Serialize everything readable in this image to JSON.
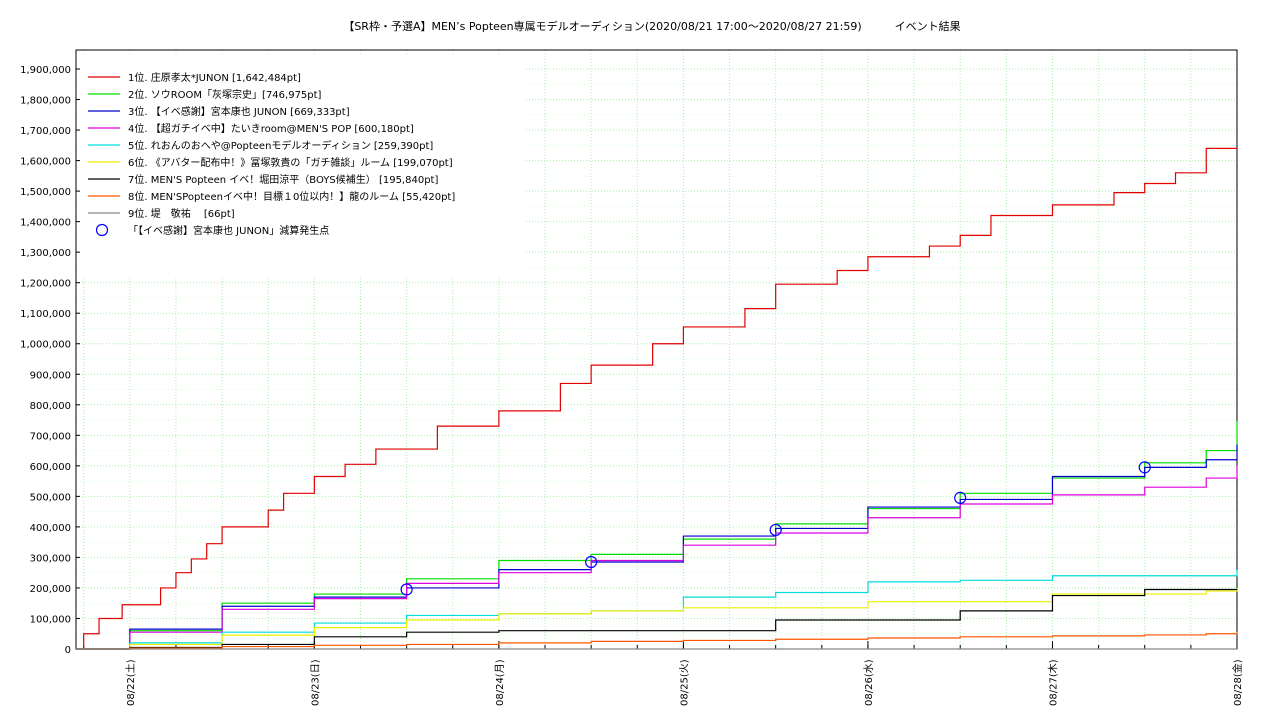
{
  "chart_data": {
    "type": "line",
    "title": "【SR枠・予選A】MEN’s Popteen専属モデルオーディション(2020/08/21 17:00～2020/08/27 21:59)　　　イベント結果",
    "xlabel": "",
    "ylabel": "",
    "ylim": [
      0,
      1900000
    ],
    "xlim": [
      "2020-08-21 17:00",
      "2020-08-28 00:00"
    ],
    "grid": true,
    "legend_placement": "top-left",
    "y_ticks": [
      "0",
      "100,000",
      "200,000",
      "300,000",
      "400,000",
      "500,000",
      "600,000",
      "700,000",
      "800,000",
      "900,000",
      "1,000,000",
      "1,100,000",
      "1,200,000",
      "1,300,000",
      "1,400,000",
      "1,500,000",
      "1,600,000",
      "1,700,000",
      "1,800,000",
      "1,900,000"
    ],
    "x_ticks": [
      {
        "label": "08/22(土)",
        "x": "2020-08-22 00:00"
      },
      {
        "label": "08/23(日)",
        "x": "2020-08-23 00:00"
      },
      {
        "label": "08/24(月)",
        "x": "2020-08-24 00:00"
      },
      {
        "label": "08/25(火)",
        "x": "2020-08-25 00:00"
      },
      {
        "label": "08/26(水)",
        "x": "2020-08-26 00:00"
      },
      {
        "label": "08/27(木)",
        "x": "2020-08-27 00:00"
      },
      {
        "label": "08/28(金)",
        "x": "2020-08-28 00:00"
      }
    ],
    "series": [
      {
        "name": "1位. 庄原孝太*JUNON [1,642,484pt]",
        "color": "#e00000",
        "x": [
          "2020-08-21 17:00",
          "2020-08-21 18:00",
          "2020-08-21 20:00",
          "2020-08-21 23:00",
          "2020-08-22 00:00",
          "2020-08-22 02:00",
          "2020-08-22 04:00",
          "2020-08-22 06:00",
          "2020-08-22 08:00",
          "2020-08-22 10:00",
          "2020-08-22 12:00",
          "2020-08-22 14:00",
          "2020-08-22 16:00",
          "2020-08-22 18:00",
          "2020-08-22 20:00",
          "2020-08-23 00:00",
          "2020-08-23 04:00",
          "2020-08-23 08:00",
          "2020-08-23 12:00",
          "2020-08-23 16:00",
          "2020-08-24 00:00",
          "2020-08-24 08:00",
          "2020-08-24 12:00",
          "2020-08-24 16:00",
          "2020-08-24 20:00",
          "2020-08-25 00:00",
          "2020-08-25 08:00",
          "2020-08-25 12:00",
          "2020-08-25 16:00",
          "2020-08-25 20:00",
          "2020-08-26 00:00",
          "2020-08-26 08:00",
          "2020-08-26 12:00",
          "2020-08-26 16:00",
          "2020-08-26 20:00",
          "2020-08-27 00:00",
          "2020-08-27 08:00",
          "2020-08-27 12:00",
          "2020-08-27 16:00",
          "2020-08-27 20:00",
          "2020-08-28 00:00"
        ],
        "values": [
          0,
          50000,
          100000,
          145000,
          145000,
          145000,
          200000,
          250000,
          295000,
          345000,
          400000,
          400000,
          400000,
          455000,
          510000,
          565000,
          605000,
          655000,
          655000,
          730000,
          780000,
          870000,
          930000,
          930000,
          1000000,
          1055000,
          1115000,
          1195000,
          1195000,
          1240000,
          1285000,
          1320000,
          1355000,
          1420000,
          1420000,
          1455000,
          1495000,
          1525000,
          1560000,
          1640000,
          1642484
        ]
      },
      {
        "name": "2位. ソウROOM「灰塚宗史」[746,975pt]",
        "color": "#00dd00",
        "x": [
          "2020-08-21 17:00",
          "2020-08-22 00:00",
          "2020-08-22 12:00",
          "2020-08-23 00:00",
          "2020-08-23 12:00",
          "2020-08-24 00:00",
          "2020-08-24 12:00",
          "2020-08-25 00:00",
          "2020-08-25 12:00",
          "2020-08-26 00:00",
          "2020-08-26 12:00",
          "2020-08-27 00:00",
          "2020-08-27 12:00",
          "2020-08-27 20:00",
          "2020-08-28 00:00"
        ],
        "values": [
          0,
          60000,
          150000,
          180000,
          230000,
          290000,
          310000,
          360000,
          410000,
          460000,
          510000,
          560000,
          610000,
          650000,
          746975
        ]
      },
      {
        "name": "3位. 【イベ感謝】宮本康也 JUNON [669,333pt]",
        "color": "#0000cc",
        "x": [
          "2020-08-21 17:00",
          "2020-08-22 00:00",
          "2020-08-22 12:00",
          "2020-08-23 00:00",
          "2020-08-23 12:00",
          "2020-08-24 00:00",
          "2020-08-24 12:00",
          "2020-08-25 00:00",
          "2020-08-25 12:00",
          "2020-08-26 00:00",
          "2020-08-26 12:00",
          "2020-08-27 00:00",
          "2020-08-27 12:00",
          "2020-08-27 20:00",
          "2020-08-28 00:00"
        ],
        "values": [
          0,
          65000,
          140000,
          170000,
          200000,
          260000,
          285000,
          370000,
          395000,
          465000,
          490000,
          565000,
          595000,
          620000,
          669333
        ]
      },
      {
        "name": "4位. 【超ガチイベ中】たいきroom@MEN'S POP [600,180pt]",
        "color": "#dd00dd",
        "x": [
          "2020-08-21 17:00",
          "2020-08-22 00:00",
          "2020-08-22 12:00",
          "2020-08-23 00:00",
          "2020-08-23 12:00",
          "2020-08-24 00:00",
          "2020-08-24 12:00",
          "2020-08-25 00:00",
          "2020-08-25 12:00",
          "2020-08-26 00:00",
          "2020-08-26 12:00",
          "2020-08-27 00:00",
          "2020-08-27 12:00",
          "2020-08-27 20:00",
          "2020-08-28 00:00"
        ],
        "values": [
          0,
          55000,
          130000,
          165000,
          215000,
          250000,
          290000,
          340000,
          380000,
          430000,
          475000,
          505000,
          530000,
          560000,
          600180
        ]
      },
      {
        "name": "5位. れおんのおへや@Popteenモデルオーディション [259,390pt]",
        "color": "#00dddd",
        "x": [
          "2020-08-21 17:00",
          "2020-08-22 00:00",
          "2020-08-22 12:00",
          "2020-08-23 00:00",
          "2020-08-23 12:00",
          "2020-08-24 00:00",
          "2020-08-24 12:00",
          "2020-08-25 00:00",
          "2020-08-25 12:00",
          "2020-08-26 00:00",
          "2020-08-26 12:00",
          "2020-08-27 00:00",
          "2020-08-27 12:00",
          "2020-08-27 20:00",
          "2020-08-28 00:00"
        ],
        "values": [
          0,
          20000,
          55000,
          85000,
          110000,
          115000,
          125000,
          170000,
          185000,
          220000,
          225000,
          240000,
          240000,
          240000,
          259390
        ]
      },
      {
        "name": "6位. 《アバター配布中！》冨塚敦貴の「ガチ雑談」ルーム [199,070pt]",
        "color": "#eeee00",
        "x": [
          "2020-08-21 17:00",
          "2020-08-22 00:00",
          "2020-08-22 12:00",
          "2020-08-23 00:00",
          "2020-08-23 12:00",
          "2020-08-24 00:00",
          "2020-08-24 12:00",
          "2020-08-25 00:00",
          "2020-08-25 12:00",
          "2020-08-26 00:00",
          "2020-08-26 12:00",
          "2020-08-27 00:00",
          "2020-08-27 12:00",
          "2020-08-27 20:00",
          "2020-08-28 00:00"
        ],
        "values": [
          0,
          15000,
          45000,
          70000,
          95000,
          115000,
          125000,
          135000,
          135000,
          155000,
          155000,
          180000,
          180000,
          190000,
          199070
        ]
      },
      {
        "name": "7位. MEN'S Popteen イベ！堀田涼平（BOYS候補生） [195,840pt]",
        "color": "#000000",
        "x": [
          "2020-08-21 17:00",
          "2020-08-22 00:00",
          "2020-08-22 12:00",
          "2020-08-23 00:00",
          "2020-08-23 12:00",
          "2020-08-24 00:00",
          "2020-08-24 12:00",
          "2020-08-25 00:00",
          "2020-08-25 12:00",
          "2020-08-26 00:00",
          "2020-08-26 12:00",
          "2020-08-27 00:00",
          "2020-08-27 12:00",
          "2020-08-27 20:00",
          "2020-08-28 00:00"
        ],
        "values": [
          0,
          5000,
          15000,
          40000,
          55000,
          60000,
          60000,
          60000,
          95000,
          95000,
          125000,
          175000,
          195000,
          195000,
          195840
        ]
      },
      {
        "name": "8位. MEN'SPopteenイベ中！目標１0位以内！】龍のルーム [55,420pt]",
        "color": "#ff5500",
        "x": [
          "2020-08-21 17:00",
          "2020-08-22 00:00",
          "2020-08-22 12:00",
          "2020-08-23 00:00",
          "2020-08-23 12:00",
          "2020-08-24 00:00",
          "2020-08-24 12:00",
          "2020-08-25 00:00",
          "2020-08-25 12:00",
          "2020-08-26 00:00",
          "2020-08-26 12:00",
          "2020-08-27 00:00",
          "2020-08-27 12:00",
          "2020-08-27 20:00",
          "2020-08-28 00:00"
        ],
        "values": [
          0,
          3000,
          8000,
          12000,
          15000,
          20000,
          25000,
          28000,
          32000,
          36000,
          40000,
          43000,
          46000,
          50000,
          55420
        ]
      },
      {
        "name": "9位. 堤　敬祐　 [66pt]",
        "color": "#888888",
        "x": [
          "2020-08-21 17:00",
          "2020-08-28 00:00"
        ],
        "values": [
          0,
          66
        ]
      }
    ],
    "markers": {
      "name": "「【イベ感謝】宮本康也 JUNON」減算発生点",
      "color": "#0000ff",
      "points": [
        {
          "x": "2020-08-23 12:00",
          "y": 195000
        },
        {
          "x": "2020-08-24 12:00",
          "y": 285000
        },
        {
          "x": "2020-08-25 12:00",
          "y": 390000
        },
        {
          "x": "2020-08-26 12:00",
          "y": 495000
        },
        {
          "x": "2020-08-27 12:00",
          "y": 595000
        }
      ]
    }
  }
}
